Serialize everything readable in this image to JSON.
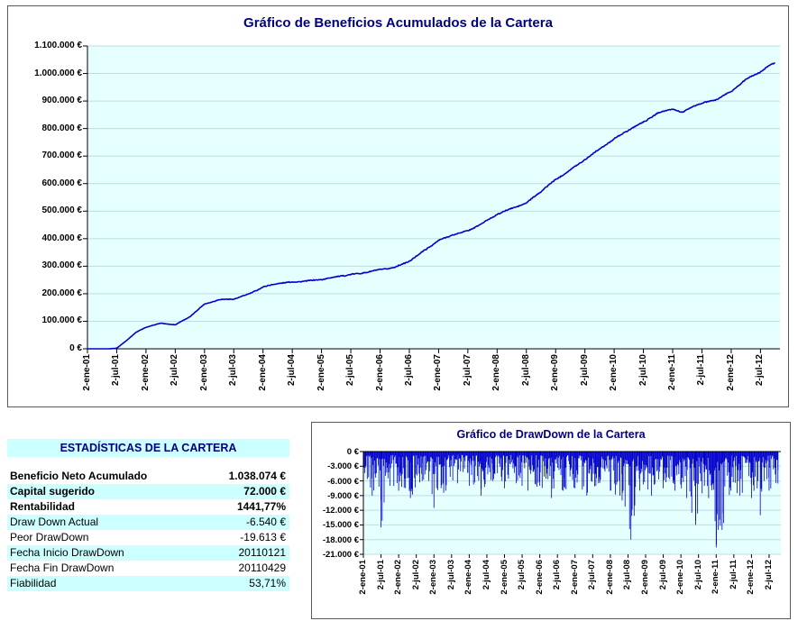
{
  "window": {
    "background": "#FFFFFF"
  },
  "colors": {
    "line": "#0000CC",
    "plot_bg": "#E6FFFF",
    "grid": "#BCDEDE",
    "band": "#CCFFFF",
    "title": "#000080",
    "axis": "#000000",
    "panel_border": "#5A5A5A"
  },
  "stats": {
    "title": "ESTADÍSTICAS DE LA CARTERA",
    "rows": [
      {
        "label": "Beneficio Neto Acumulado",
        "value": "1.038.074 €",
        "bold": true,
        "band": false
      },
      {
        "label": "Capital sugerido",
        "value": "72.000 €",
        "bold": true,
        "band": true
      },
      {
        "label": "Rentabilidad",
        "value": "1441,77%",
        "bold": true,
        "band": false
      },
      {
        "label": "Draw Down Actual",
        "value": "-6.540 €",
        "bold": false,
        "band": true
      },
      {
        "label": "Peor DrawDown",
        "value": "-19.613 €",
        "bold": false,
        "band": false
      },
      {
        "label": "Fecha Inicio DrawDown",
        "value": "20110121",
        "bold": false,
        "band": true
      },
      {
        "label": "Fecha Fin DrawDown",
        "value": "20110429",
        "bold": false,
        "band": false
      },
      {
        "label": "Fiabilidad",
        "value": "53,71%",
        "bold": false,
        "band": true
      }
    ]
  },
  "chart_data": [
    {
      "id": "equity",
      "type": "line",
      "title": "Gráfico de Beneficios Acumulados de la Cartera",
      "xlabel": "",
      "ylabel": "",
      "ylim": [
        0,
        1100000
      ],
      "grid": true,
      "legend": false,
      "months_total": 142,
      "y_ticks": [
        {
          "v": 0,
          "label": "0 €"
        },
        {
          "v": 100000,
          "label": "100.000 €"
        },
        {
          "v": 200000,
          "label": "200.000 €"
        },
        {
          "v": 300000,
          "label": "300.000 €"
        },
        {
          "v": 400000,
          "label": "400.000 €"
        },
        {
          "v": 500000,
          "label": "500.000 €"
        },
        {
          "v": 600000,
          "label": "600.000 €"
        },
        {
          "v": 700000,
          "label": "700.000 €"
        },
        {
          "v": 800000,
          "label": "800.000 €"
        },
        {
          "v": 900000,
          "label": "900.000 €"
        },
        {
          "v": 1000000,
          "label": "1.000.000 €"
        },
        {
          "v": 1100000,
          "label": "1.100.000 €"
        }
      ],
      "x_ticks": [
        {
          "m": 0,
          "label": "2-ene-01"
        },
        {
          "m": 6,
          "label": "2-jul-01"
        },
        {
          "m": 12,
          "label": "2-ene-02"
        },
        {
          "m": 18,
          "label": "2-jul-02"
        },
        {
          "m": 24,
          "label": "2-ene-03"
        },
        {
          "m": 30,
          "label": "2-jul-03"
        },
        {
          "m": 36,
          "label": "2-ene-04"
        },
        {
          "m": 42,
          "label": "2-jul-04"
        },
        {
          "m": 48,
          "label": "2-ene-05"
        },
        {
          "m": 54,
          "label": "2-jul-05"
        },
        {
          "m": 60,
          "label": "2-ene-06"
        },
        {
          "m": 66,
          "label": "2-jul-06"
        },
        {
          "m": 72,
          "label": "2-ene-07"
        },
        {
          "m": 78,
          "label": "2-jul-07"
        },
        {
          "m": 84,
          "label": "2-ene-08"
        },
        {
          "m": 90,
          "label": "2-jul-08"
        },
        {
          "m": 96,
          "label": "2-ene-09"
        },
        {
          "m": 102,
          "label": "2-jul-09"
        },
        {
          "m": 108,
          "label": "2-ene-10"
        },
        {
          "m": 114,
          "label": "2-jul-10"
        },
        {
          "m": 120,
          "label": "2-ene-11"
        },
        {
          "m": 126,
          "label": "2-jul-11"
        },
        {
          "m": 132,
          "label": "2-ene-12"
        },
        {
          "m": 138,
          "label": "2-jul-12"
        }
      ],
      "series": [
        {
          "name": "Beneficio acumulado",
          "color": "#0000CC",
          "anchors_t": [
            0,
            3,
            6,
            8,
            10,
            12,
            15,
            18,
            21,
            24,
            27,
            30,
            33,
            36,
            39,
            42,
            45,
            48,
            52,
            56,
            60,
            63,
            66,
            69,
            72,
            75,
            78,
            81,
            84,
            87,
            90,
            93,
            96,
            99,
            102,
            105,
            108,
            111,
            114,
            117,
            120,
            122,
            124,
            126,
            129,
            132,
            135,
            138,
            140,
            141
          ],
          "anchors_v": [
            0,
            -2000,
            2000,
            30000,
            60000,
            78000,
            92000,
            86000,
            115000,
            162000,
            180000,
            183000,
            200000,
            225000,
            238000,
            244000,
            250000,
            256000,
            266000,
            272000,
            285000,
            295000,
            318000,
            355000,
            390000,
            410000,
            425000,
            455000,
            490000,
            512000,
            530000,
            572000,
            615000,
            652000,
            692000,
            730000,
            765000,
            795000,
            822000,
            856000,
            872000,
            858000,
            880000,
            890000,
            902000,
            930000,
            975000,
            1005000,
            1032000,
            1038074
          ]
        }
      ],
      "final_value": 1038074
    },
    {
      "id": "drawdown",
      "type": "area",
      "title": "Gráfico de DrawDown de la Cartera",
      "xlabel": "",
      "ylabel": "",
      "ylim": [
        -21000,
        0
      ],
      "grid": true,
      "legend": false,
      "months_total": 142,
      "y_ticks": [
        {
          "v": 0,
          "label": "0 €"
        },
        {
          "v": -3000,
          "label": "-3.000 €"
        },
        {
          "v": -6000,
          "label": "-6.000 €"
        },
        {
          "v": -9000,
          "label": "-9.000 €"
        },
        {
          "v": -12000,
          "label": "-12.000 €"
        },
        {
          "v": -15000,
          "label": "-15.000 €"
        },
        {
          "v": -18000,
          "label": "-18.000 €"
        },
        {
          "v": -21000,
          "label": "-21.000 €"
        }
      ],
      "x_ticks": [
        {
          "m": 0,
          "label": "2-ene-01"
        },
        {
          "m": 6,
          "label": "2-jul-01"
        },
        {
          "m": 12,
          "label": "2-ene-02"
        },
        {
          "m": 18,
          "label": "2-jul-02"
        },
        {
          "m": 24,
          "label": "2-ene-03"
        },
        {
          "m": 30,
          "label": "2-jul-03"
        },
        {
          "m": 36,
          "label": "2-ene-04"
        },
        {
          "m": 42,
          "label": "2-jul-04"
        },
        {
          "m": 48,
          "label": "2-ene-05"
        },
        {
          "m": 54,
          "label": "2-jul-05"
        },
        {
          "m": 60,
          "label": "2-ene-06"
        },
        {
          "m": 66,
          "label": "2-jul-06"
        },
        {
          "m": 72,
          "label": "2-ene-07"
        },
        {
          "m": 78,
          "label": "2-jul-07"
        },
        {
          "m": 84,
          "label": "2-ene-08"
        },
        {
          "m": 90,
          "label": "2-jul-08"
        },
        {
          "m": 96,
          "label": "2-ene-09"
        },
        {
          "m": 102,
          "label": "2-jul-09"
        },
        {
          "m": 108,
          "label": "2-ene-10"
        },
        {
          "m": 114,
          "label": "2-jul-10"
        },
        {
          "m": 120,
          "label": "2-ene-11"
        },
        {
          "m": 126,
          "label": "2-jul-11"
        },
        {
          "m": 132,
          "label": "2-ene-12"
        },
        {
          "m": 138,
          "label": "2-jul-12"
        }
      ],
      "series": [
        {
          "name": "DrawDown",
          "color": "#0000CC",
          "anchors_t": [
            0,
            3,
            6,
            9,
            12,
            16,
            20,
            24,
            28,
            32,
            36,
            40,
            44,
            48,
            52,
            56,
            60,
            64,
            68,
            72,
            76,
            80,
            84,
            88,
            91,
            94,
            98,
            102,
            106,
            110,
            113,
            116,
            120,
            122,
            125,
            128,
            132,
            135,
            138,
            141
          ],
          "anchors_v": [
            -4000,
            -9000,
            -15500,
            -7000,
            -8000,
            -9500,
            -6000,
            -11500,
            -8000,
            -6500,
            -7000,
            -9000,
            -6000,
            -7500,
            -6500,
            -8000,
            -7000,
            -9500,
            -8000,
            -7500,
            -9000,
            -6500,
            -8000,
            -10000,
            -18000,
            -8000,
            -9000,
            -7500,
            -8000,
            -9500,
            -15000,
            -7000,
            -19613,
            -16000,
            -8000,
            -9000,
            -9500,
            -13000,
            -8000,
            -6540
          ]
        }
      ],
      "worst_drawdown": -19613
    }
  ]
}
